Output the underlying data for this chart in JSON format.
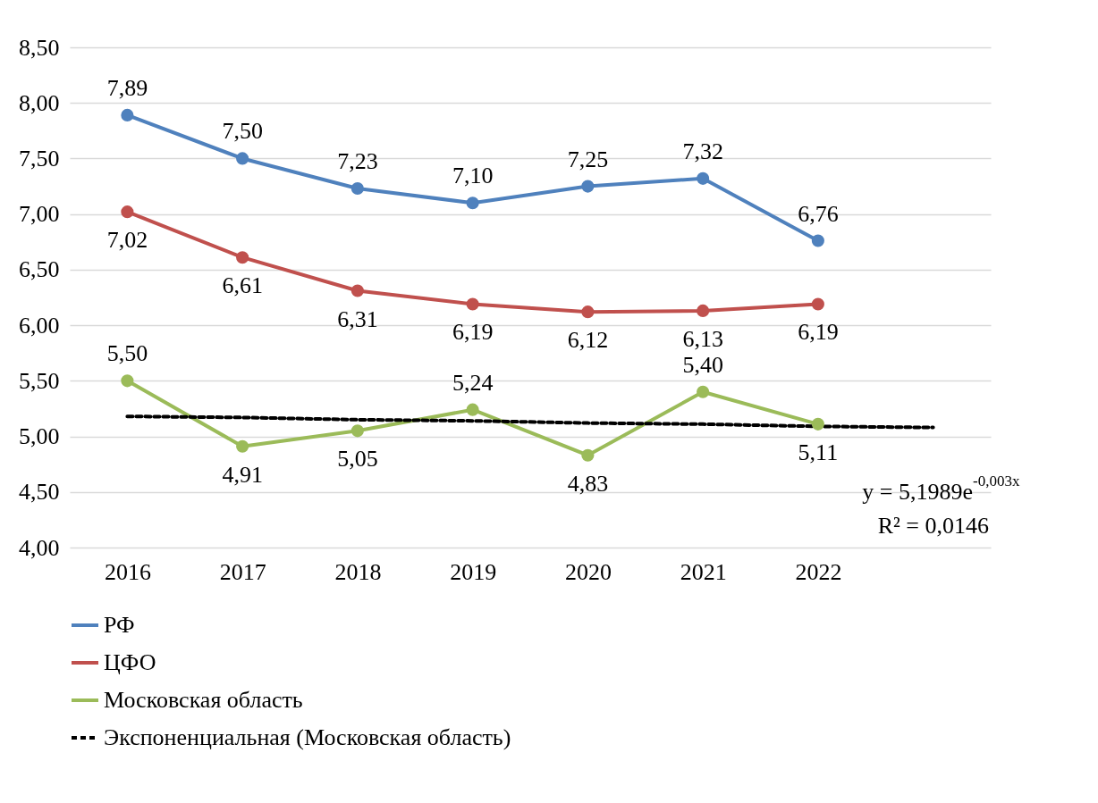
{
  "chart_data": {
    "type": "line",
    "categories": [
      "2016",
      "2017",
      "2018",
      "2019",
      "2020",
      "2021",
      "2022",
      null
    ],
    "series": [
      {
        "name": "РФ",
        "color": "#4f81bd",
        "values": [
          7.89,
          7.5,
          7.23,
          7.1,
          7.25,
          7.32,
          6.76,
          null
        ],
        "value_labels": [
          "7,89",
          "7,50",
          "7,23",
          "7,10",
          "7,25",
          "7,32",
          "6,76",
          null
        ]
      },
      {
        "name": "ЦФО",
        "color": "#c0504d",
        "values": [
          7.02,
          6.61,
          6.31,
          6.19,
          6.12,
          6.13,
          6.19,
          null
        ],
        "value_labels": [
          "7,02",
          "6,61",
          "6,31",
          "6,19",
          "6,12",
          "6,13",
          "6,19",
          null
        ]
      },
      {
        "name": "Московская область",
        "color": "#9bbb59",
        "values": [
          5.5,
          4.91,
          5.05,
          5.24,
          4.83,
          5.4,
          5.11,
          null
        ],
        "value_labels": [
          "5,50",
          "4,91",
          "5,05",
          "5,24",
          "4,83",
          "5,40",
          "5,11",
          null
        ]
      },
      {
        "name": "Экспоненциальная (Московская область)",
        "color": "#000000",
        "line_style": "dashed",
        "marker": "none",
        "values": [
          5.18,
          5.17,
          5.15,
          5.14,
          5.12,
          5.11,
          5.09,
          5.08
        ]
      }
    ],
    "ylim": [
      4,
      8.5
    ],
    "yticks": [
      {
        "value": 4,
        "label": "4,00"
      },
      {
        "value": 4.5,
        "label": "4,50"
      },
      {
        "value": 5,
        "label": "5,00"
      },
      {
        "value": 5.5,
        "label": "5,50"
      },
      {
        "value": 6,
        "label": "6,00"
      },
      {
        "value": 6.5,
        "label": "6,50"
      },
      {
        "value": 7,
        "label": "7,00"
      },
      {
        "value": 7.5,
        "label": "7,50"
      },
      {
        "value": 8,
        "label": "8,00"
      },
      {
        "value": 8.5,
        "label": "8,50"
      }
    ],
    "grid": "y",
    "legend": "bottom",
    "marker": "circle",
    "line_style": "solid",
    "annotations": [
      "y = 5,1989e$^{-0,003x}$",
      "R² = 0,0146"
    ]
  }
}
